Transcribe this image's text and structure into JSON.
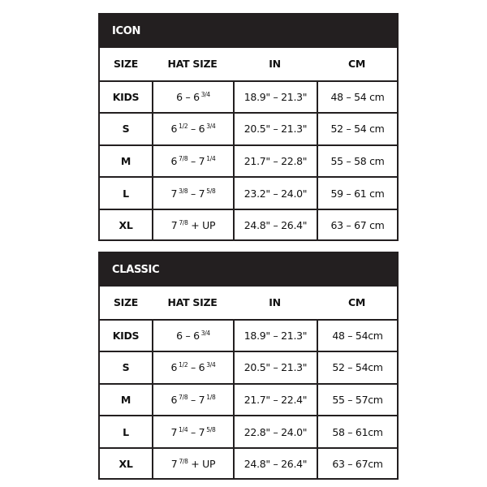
{
  "tables": [
    {
      "title": "ICON",
      "headers": [
        "SIZE",
        "HAT SIZE",
        "IN",
        "CM"
      ],
      "rows": [
        {
          "size": "KIDS",
          "hat": {
            "from": "6",
            "from_frac": "",
            "sep": " – ",
            "to": "6",
            "to_frac": "3/4"
          },
          "in": "18.9\" – 21.3\"",
          "cm": "48 – 54 cm"
        },
        {
          "size": "S",
          "hat": {
            "from": "6",
            "from_frac": "1/2",
            "sep": " – ",
            "to": "6",
            "to_frac": "3/4"
          },
          "in": "20.5\" – 21.3\"",
          "cm": "52 – 54 cm"
        },
        {
          "size": "M",
          "hat": {
            "from": "6",
            "from_frac": "7/8",
            "sep": " – ",
            "to": "7",
            "to_frac": "1/4"
          },
          "in": "21.7\" – 22.8\"",
          "cm": "55 – 58 cm"
        },
        {
          "size": "L",
          "hat": {
            "from": "7",
            "from_frac": "3/8",
            "sep": " – ",
            "to": "7",
            "to_frac": "5/8"
          },
          "in": "23.2\" – 24.0\"",
          "cm": "59 – 61 cm"
        },
        {
          "size": "XL",
          "hat": {
            "from": "7",
            "from_frac": "7/8",
            "sep": " + UP",
            "to": "",
            "to_frac": ""
          },
          "in": "24.8\" – 26.4\"",
          "cm": "63 – 67 cm"
        }
      ]
    },
    {
      "title": "CLASSIC",
      "headers": [
        "SIZE",
        "HAT SIZE",
        "IN",
        "CM"
      ],
      "rows": [
        {
          "size": "KIDS",
          "hat": {
            "from": "6",
            "from_frac": "",
            "sep": " – ",
            "to": "6",
            "to_frac": "3/4"
          },
          "in": "18.9\" – 21.3\"",
          "cm": "48 – 54cm"
        },
        {
          "size": "S",
          "hat": {
            "from": "6",
            "from_frac": "1/2",
            "sep": " – ",
            "to": "6",
            "to_frac": "3/4"
          },
          "in": "20.5\" – 21.3\"",
          "cm": "52 – 54cm"
        },
        {
          "size": "M",
          "hat": {
            "from": "6",
            "from_frac": "7/8",
            "sep": " – ",
            "to": "7",
            "to_frac": "1/8"
          },
          "in": "21.7\" – 22.4\"",
          "cm": "55 – 57cm"
        },
        {
          "size": "L",
          "hat": {
            "from": "7",
            "from_frac": "1/4",
            "sep": " – ",
            "to": "7",
            "to_frac": "5/8"
          },
          "in": "22.8\" – 24.0\"",
          "cm": "58 – 61cm"
        },
        {
          "size": "XL",
          "hat": {
            "from": "7",
            "from_frac": "7/8",
            "sep": " + UP",
            "to": "",
            "to_frac": ""
          },
          "in": "24.8\" – 26.4\"",
          "cm": "63 – 67cm"
        }
      ]
    }
  ]
}
